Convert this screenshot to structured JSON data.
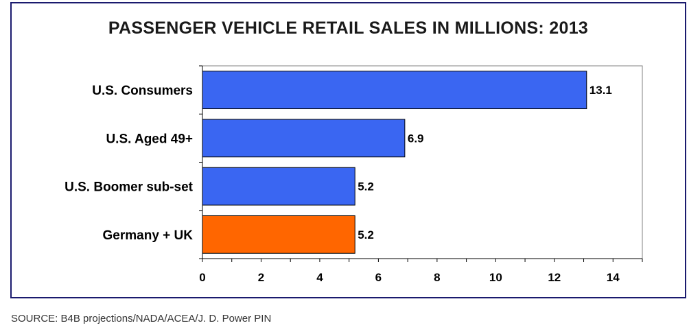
{
  "chart_data": {
    "type": "bar",
    "orientation": "horizontal",
    "title": "PASSENGER VEHICLE RETAIL SALES IN MILLIONS: 2013",
    "categories": [
      "U.S. Consumers",
      "U.S. Aged 49+",
      "U.S. Boomer sub-set",
      "Germany + UK"
    ],
    "values": [
      13.1,
      6.9,
      5.2,
      5.2
    ],
    "value_labels": [
      "13.1",
      "6.9",
      "5.2",
      "5.2"
    ],
    "bar_colors": [
      "#3a66f2",
      "#3a66f2",
      "#3a66f2",
      "#ff6600"
    ],
    "xlim": [
      0,
      15
    ],
    "x_ticks": [
      0,
      2,
      4,
      6,
      8,
      10,
      12,
      14
    ],
    "x_tick_labels": [
      "0",
      "2",
      "4",
      "6",
      "8",
      "10",
      "12",
      "14"
    ],
    "xlabel": "",
    "ylabel": "",
    "grid": false,
    "legend": "none"
  },
  "source": "SOURCE: B4B projections/NADA/ACEA/J. D. Power PIN"
}
